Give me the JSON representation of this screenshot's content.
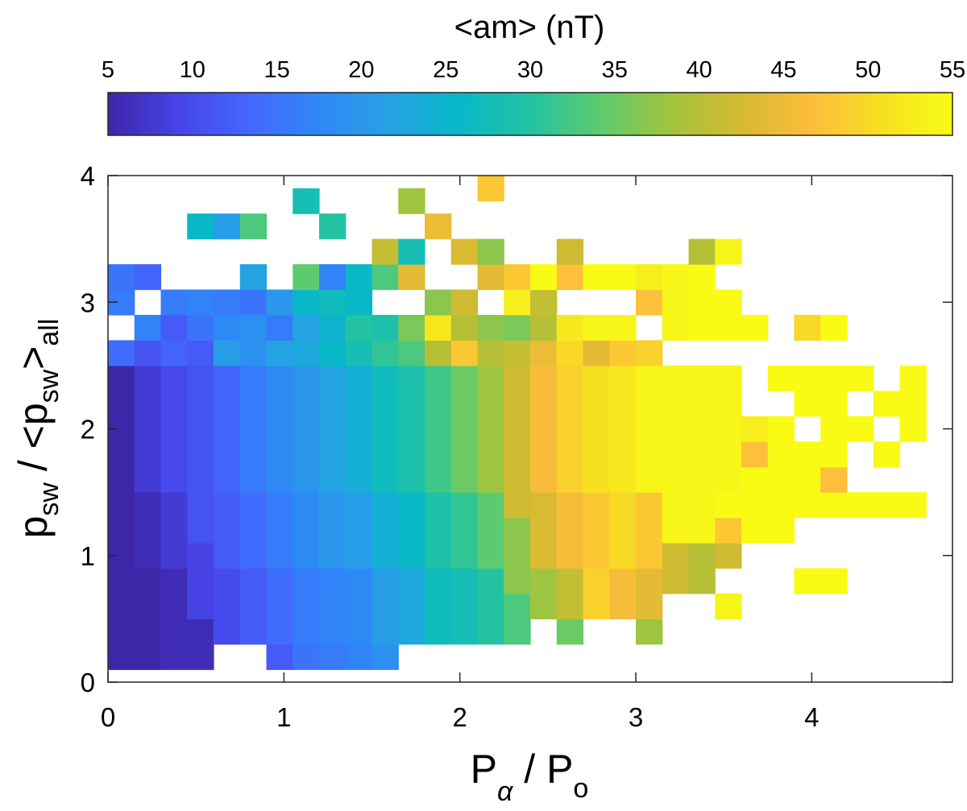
{
  "chart_data": {
    "type": "heatmap",
    "title": "<am> (nT)",
    "xlabel": {
      "main": "P",
      "sub1": "α",
      "sep": " / P",
      "sub2": "o"
    },
    "ylabel": {
      "main": "p",
      "sub1": "sw",
      "sep": " / <p",
      "sub2": "sw",
      "close": ">",
      "sub3": "all"
    },
    "xlim": [
      0,
      4.8
    ],
    "ylim": [
      0,
      4
    ],
    "x_ticks": [
      "0",
      "1",
      "2",
      "3",
      "4"
    ],
    "y_ticks": [
      "0",
      "1",
      "2",
      "3",
      "4"
    ],
    "colorbar": {
      "label": "<am> (nT)",
      "range": [
        5,
        55
      ],
      "ticks": [
        "5",
        "10",
        "15",
        "20",
        "25",
        "30",
        "35",
        "40",
        "45",
        "50",
        "55"
      ],
      "colormap": "parula",
      "colors": [
        "#3e26a8",
        "#4743e7",
        "#4367fe",
        "#2e87f7",
        "#27a1e4",
        "#07b8c7",
        "#23c3a2",
        "#5ecb6e",
        "#a2c43c",
        "#d5ba30",
        "#fdbd3c",
        "#f6e021",
        "#f9fb15"
      ]
    },
    "grid": false,
    "bin_width": {
      "x": 0.15,
      "y": 0.2
    },
    "columns": [
      {
        "x": 0.075,
        "segments": [
          [
            0.1,
            2.5,
            5
          ],
          [
            2.5,
            2.7,
            14
          ],
          [
            2.9,
            3.1,
            16
          ],
          [
            3.1,
            3.3,
            15
          ]
        ]
      },
      {
        "x": 0.225,
        "segments": [
          [
            0.1,
            0.9,
            5
          ],
          [
            0.9,
            1.5,
            6
          ],
          [
            1.5,
            2.5,
            8
          ],
          [
            2.5,
            2.7,
            11
          ],
          [
            2.7,
            2.9,
            17
          ],
          [
            3.1,
            3.3,
            13
          ]
        ]
      },
      {
        "x": 0.375,
        "segments": [
          [
            0.1,
            0.9,
            6
          ],
          [
            0.9,
            1.5,
            8
          ],
          [
            1.5,
            2.5,
            10
          ],
          [
            2.5,
            2.7,
            13
          ],
          [
            2.7,
            2.9,
            12
          ],
          [
            2.9,
            3.1,
            16
          ]
        ]
      },
      {
        "x": 0.525,
        "segments": [
          [
            0.1,
            0.5,
            6
          ],
          [
            0.5,
            1.1,
            9
          ],
          [
            1.1,
            2.5,
            11
          ],
          [
            2.5,
            2.7,
            12
          ],
          [
            2.7,
            2.9,
            15
          ],
          [
            2.9,
            3.1,
            17
          ],
          [
            3.5,
            3.7,
            26
          ]
        ]
      },
      {
        "x": 0.675,
        "segments": [
          [
            0.3,
            0.9,
            10
          ],
          [
            0.9,
            1.5,
            12
          ],
          [
            1.5,
            2.5,
            13
          ],
          [
            2.5,
            2.7,
            21
          ],
          [
            2.7,
            2.9,
            18
          ],
          [
            2.9,
            3.1,
            16
          ],
          [
            3.5,
            3.7,
            21
          ]
        ]
      },
      {
        "x": 0.825,
        "segments": [
          [
            0.3,
            0.9,
            12
          ],
          [
            0.9,
            1.5,
            14
          ],
          [
            1.5,
            2.5,
            16
          ],
          [
            2.5,
            2.7,
            19
          ],
          [
            2.7,
            2.9,
            19
          ],
          [
            2.9,
            3.1,
            15
          ],
          [
            3.1,
            3.3,
            22
          ],
          [
            3.5,
            3.7,
            33
          ]
        ]
      },
      {
        "x": 0.975,
        "segments": [
          [
            0.1,
            0.3,
            12
          ],
          [
            0.3,
            0.9,
            14
          ],
          [
            0.9,
            1.5,
            16
          ],
          [
            1.5,
            2.5,
            18
          ],
          [
            2.5,
            2.7,
            22
          ],
          [
            2.7,
            2.9,
            16
          ],
          [
            2.9,
            3.1,
            20
          ]
        ]
      },
      {
        "x": 1.125,
        "segments": [
          [
            0.1,
            0.3,
            15
          ],
          [
            0.3,
            0.9,
            16
          ],
          [
            0.9,
            1.5,
            18
          ],
          [
            1.5,
            2.5,
            20
          ],
          [
            2.5,
            2.7,
            23
          ],
          [
            2.7,
            2.9,
            22
          ],
          [
            2.9,
            3.1,
            26
          ],
          [
            3.1,
            3.3,
            34
          ],
          [
            3.7,
            3.9,
            28
          ]
        ]
      },
      {
        "x": 1.275,
        "segments": [
          [
            0.1,
            0.3,
            16
          ],
          [
            0.3,
            0.9,
            17
          ],
          [
            0.9,
            1.5,
            20
          ],
          [
            1.5,
            2.5,
            22
          ],
          [
            2.5,
            2.7,
            26
          ],
          [
            2.7,
            2.9,
            25
          ],
          [
            2.9,
            3.1,
            27
          ],
          [
            3.1,
            3.3,
            17
          ],
          [
            3.5,
            3.7,
            30
          ]
        ]
      },
      {
        "x": 1.425,
        "segments": [
          [
            0.1,
            0.3,
            17
          ],
          [
            0.3,
            0.9,
            18
          ],
          [
            0.9,
            1.5,
            21
          ],
          [
            1.5,
            2.5,
            24
          ],
          [
            2.5,
            2.7,
            28
          ],
          [
            2.7,
            2.9,
            30
          ],
          [
            2.9,
            3.1,
            26
          ],
          [
            3.1,
            3.3,
            26
          ]
        ]
      },
      {
        "x": 1.575,
        "segments": [
          [
            0.1,
            0.3,
            19
          ],
          [
            0.3,
            0.9,
            21
          ],
          [
            0.9,
            1.5,
            24
          ],
          [
            1.5,
            2.5,
            27
          ],
          [
            2.5,
            2.7,
            31
          ],
          [
            2.7,
            2.9,
            29
          ],
          [
            3.1,
            3.3,
            33
          ],
          [
            3.3,
            3.5,
            41
          ]
        ]
      },
      {
        "x": 1.725,
        "segments": [
          [
            0.3,
            0.9,
            23
          ],
          [
            0.9,
            1.5,
            26
          ],
          [
            1.5,
            2.5,
            29
          ],
          [
            2.5,
            2.7,
            33
          ],
          [
            2.7,
            2.9,
            36
          ],
          [
            3.1,
            3.3,
            44
          ],
          [
            3.3,
            3.5,
            28
          ],
          [
            3.7,
            3.9,
            38
          ]
        ]
      },
      {
        "x": 1.875,
        "segments": [
          [
            0.3,
            0.9,
            27
          ],
          [
            0.9,
            1.5,
            29
          ],
          [
            1.5,
            2.5,
            32
          ],
          [
            2.5,
            2.7,
            40
          ],
          [
            2.7,
            2.9,
            52
          ],
          [
            2.9,
            3.1,
            37
          ],
          [
            3.5,
            3.7,
            45
          ]
        ]
      },
      {
        "x": 2.025,
        "segments": [
          [
            0.3,
            0.9,
            28
          ],
          [
            0.9,
            1.5,
            31
          ],
          [
            1.5,
            2.5,
            35
          ],
          [
            2.5,
            2.7,
            48
          ],
          [
            2.7,
            2.9,
            40
          ],
          [
            2.9,
            3.1,
            42
          ],
          [
            3.3,
            3.5,
            43
          ]
        ]
      },
      {
        "x": 2.175,
        "segments": [
          [
            0.3,
            0.9,
            30
          ],
          [
            0.9,
            1.5,
            34
          ],
          [
            1.5,
            2.5,
            38
          ],
          [
            2.5,
            2.7,
            40
          ],
          [
            2.7,
            2.9,
            37
          ],
          [
            3.1,
            3.3,
            44
          ],
          [
            3.3,
            3.5,
            37
          ],
          [
            3.8,
            4.0,
            48
          ]
        ]
      },
      {
        "x": 2.325,
        "segments": [
          [
            0.3,
            0.7,
            33
          ],
          [
            0.7,
            1.3,
            37
          ],
          [
            1.3,
            2.5,
            42
          ],
          [
            2.5,
            2.7,
            41
          ],
          [
            2.7,
            2.9,
            36
          ],
          [
            2.9,
            3.1,
            53
          ],
          [
            3.1,
            3.3,
            48
          ]
        ]
      },
      {
        "x": 2.475,
        "segments": [
          [
            0.5,
            0.9,
            38
          ],
          [
            0.9,
            1.5,
            43
          ],
          [
            1.5,
            2.5,
            46
          ],
          [
            2.5,
            2.7,
            45
          ],
          [
            2.7,
            2.9,
            40
          ],
          [
            2.9,
            3.1,
            41
          ],
          [
            3.1,
            3.3,
            55
          ]
        ]
      },
      {
        "x": 2.625,
        "segments": [
          [
            0.3,
            0.5,
            35
          ],
          [
            0.5,
            0.9,
            41
          ],
          [
            0.9,
            1.5,
            46
          ],
          [
            1.5,
            2.5,
            49
          ],
          [
            2.5,
            2.7,
            50
          ],
          [
            2.7,
            2.9,
            52
          ],
          [
            3.1,
            3.3,
            47
          ],
          [
            3.3,
            3.5,
            42
          ]
        ]
      },
      {
        "x": 2.775,
        "segments": [
          [
            0.5,
            0.9,
            49
          ],
          [
            0.9,
            1.5,
            48
          ],
          [
            1.5,
            2.5,
            51
          ],
          [
            2.5,
            2.7,
            44
          ],
          [
            2.7,
            2.9,
            54
          ],
          [
            3.1,
            3.3,
            55
          ]
        ]
      },
      {
        "x": 2.925,
        "segments": [
          [
            0.5,
            0.9,
            46
          ],
          [
            0.9,
            1.5,
            50
          ],
          [
            1.5,
            2.5,
            52
          ],
          [
            2.5,
            2.7,
            48
          ],
          [
            2.7,
            2.9,
            54
          ],
          [
            3.1,
            3.3,
            55
          ]
        ]
      },
      {
        "x": 3.075,
        "segments": [
          [
            0.3,
            0.5,
            38
          ],
          [
            0.5,
            0.9,
            44
          ],
          [
            0.9,
            1.5,
            48
          ],
          [
            1.5,
            2.5,
            54
          ],
          [
            2.5,
            2.7,
            49
          ],
          [
            2.9,
            3.1,
            47
          ],
          [
            3.1,
            3.3,
            53
          ]
        ]
      },
      {
        "x": 3.225,
        "segments": [
          [
            0.7,
            1.1,
            42
          ],
          [
            1.1,
            2.5,
            54
          ],
          [
            2.7,
            3.3,
            54
          ]
        ]
      },
      {
        "x": 3.375,
        "segments": [
          [
            0.7,
            1.1,
            40
          ],
          [
            1.1,
            2.5,
            54
          ],
          [
            2.7,
            3.3,
            55
          ],
          [
            3.3,
            3.5,
            40
          ]
        ]
      },
      {
        "x": 3.525,
        "segments": [
          [
            0.5,
            0.7,
            54
          ],
          [
            0.9,
            1.1,
            42
          ],
          [
            1.1,
            1.3,
            48
          ],
          [
            1.3,
            1.5,
            55
          ],
          [
            1.5,
            2.5,
            54
          ],
          [
            2.7,
            3.1,
            55
          ],
          [
            3.3,
            3.5,
            54
          ]
        ]
      },
      {
        "x": 3.675,
        "segments": [
          [
            1.1,
            1.7,
            55
          ],
          [
            1.7,
            1.9,
            47
          ],
          [
            1.9,
            2.1,
            53
          ],
          [
            2.7,
            2.9,
            55
          ]
        ]
      },
      {
        "x": 3.825,
        "segments": [
          [
            1.1,
            1.5,
            55
          ],
          [
            1.5,
            2.1,
            55
          ],
          [
            2.3,
            2.5,
            55
          ]
        ]
      },
      {
        "x": 3.975,
        "segments": [
          [
            0.7,
            0.9,
            55
          ],
          [
            1.3,
            1.9,
            55
          ],
          [
            2.1,
            2.5,
            55
          ],
          [
            2.7,
            2.9,
            50
          ]
        ]
      },
      {
        "x": 4.125,
        "segments": [
          [
            0.7,
            0.9,
            55
          ],
          [
            1.3,
            1.5,
            55
          ],
          [
            1.5,
            1.7,
            47
          ],
          [
            1.7,
            1.9,
            55
          ],
          [
            1.9,
            2.5,
            55
          ],
          [
            2.7,
            2.9,
            55
          ]
        ]
      },
      {
        "x": 4.275,
        "segments": [
          [
            1.3,
            1.5,
            55
          ],
          [
            1.9,
            2.1,
            55
          ],
          [
            2.3,
            2.5,
            55
          ]
        ]
      },
      {
        "x": 4.425,
        "segments": [
          [
            1.3,
            1.5,
            55
          ],
          [
            1.7,
            1.9,
            55
          ],
          [
            2.1,
            2.3,
            55
          ]
        ]
      },
      {
        "x": 4.575,
        "segments": [
          [
            1.3,
            1.5,
            55
          ],
          [
            2.1,
            2.5,
            55
          ]
        ]
      },
      {
        "x": 4.575,
        "segments": [
          [
            1.9,
            2.1,
            55
          ]
        ]
      }
    ]
  }
}
